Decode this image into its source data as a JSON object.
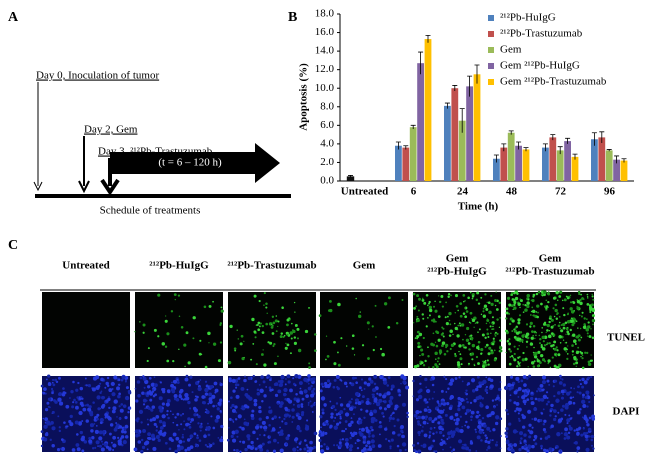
{
  "panel_a": {
    "label": "A",
    "events": [
      "Day 0, Inoculation of tumor",
      "Day 2, Gem",
      "Day 3, ²¹²Pb-Trastuzumab"
    ],
    "duration": "(t = 6 – 120 h)",
    "caption": "Schedule of treatments"
  },
  "chart_data": {
    "type": "bar",
    "panel_label": "B",
    "y_label": "Apoptosis (%)",
    "x_label": "Time (h)",
    "categories": [
      "Untreated",
      "6",
      "24",
      "48",
      "72",
      "96"
    ],
    "control": {
      "color": "#111111",
      "value": 0.5,
      "error": 0.1
    },
    "series": [
      {
        "name": "²¹²Pb-HuIgG",
        "color": "#4f81bd",
        "values": [
          null,
          3.8,
          8.1,
          2.4,
          3.6,
          4.5
        ],
        "errors": [
          null,
          0.4,
          0.3,
          0.4,
          0.4,
          0.7
        ]
      },
      {
        "name": "²¹²Pb-Trastuzumab",
        "color": "#c0504d",
        "values": [
          null,
          3.6,
          10.0,
          3.6,
          4.7,
          4.7
        ],
        "errors": [
          null,
          0.2,
          0.3,
          0.4,
          0.3,
          0.6
        ]
      },
      {
        "name": "Gem",
        "color": "#9bbb59",
        "values": [
          null,
          5.8,
          6.5,
          5.2,
          3.3,
          3.3
        ],
        "errors": [
          null,
          0.2,
          1.3,
          0.2,
          0.4,
          0.1
        ]
      },
      {
        "name": "Gem ²¹²Pb-HuIgG",
        "color": "#8064a2",
        "values": [
          null,
          12.7,
          10.2,
          3.8,
          4.3,
          2.3
        ],
        "errors": [
          null,
          1.2,
          1.1,
          0.4,
          0.3,
          0.4
        ]
      },
      {
        "name": "Gem ²¹²Pb-Trastuzumab",
        "color": "#ffc000",
        "values": [
          null,
          15.3,
          11.5,
          3.4,
          2.6,
          2.2
        ],
        "errors": [
          null,
          0.4,
          1.0,
          0.2,
          0.3,
          0.2
        ]
      }
    ],
    "ylim": [
      0,
      18
    ],
    "yticks": [
      {
        "value": 0,
        "label": "0.0"
      },
      {
        "value": 2,
        "label": "2.0"
      },
      {
        "value": 4,
        "label": "4.0"
      },
      {
        "value": 6,
        "label": "6.0"
      },
      {
        "value": 8,
        "label": "8.0"
      },
      {
        "value": 10,
        "label": "10.0"
      },
      {
        "value": 12,
        "label": "12.0"
      },
      {
        "value": 14,
        "label": "14.0"
      },
      {
        "value": 16,
        "label": "16.0"
      },
      {
        "value": 18,
        "label": "18.0"
      }
    ]
  },
  "panel_c": {
    "label": "C",
    "columns": [
      [
        "Untreated"
      ],
      [
        "²¹²Pb-HuIgG"
      ],
      [
        "²¹²Pb-Trastuzumab"
      ],
      [
        "Gem"
      ],
      [
        "Gem",
        "²¹²Pb-HuIgG"
      ],
      [
        "Gem",
        "²¹²Pb-Trastuzumab"
      ]
    ],
    "rows": [
      "TUNEL",
      "DAPI"
    ]
  }
}
